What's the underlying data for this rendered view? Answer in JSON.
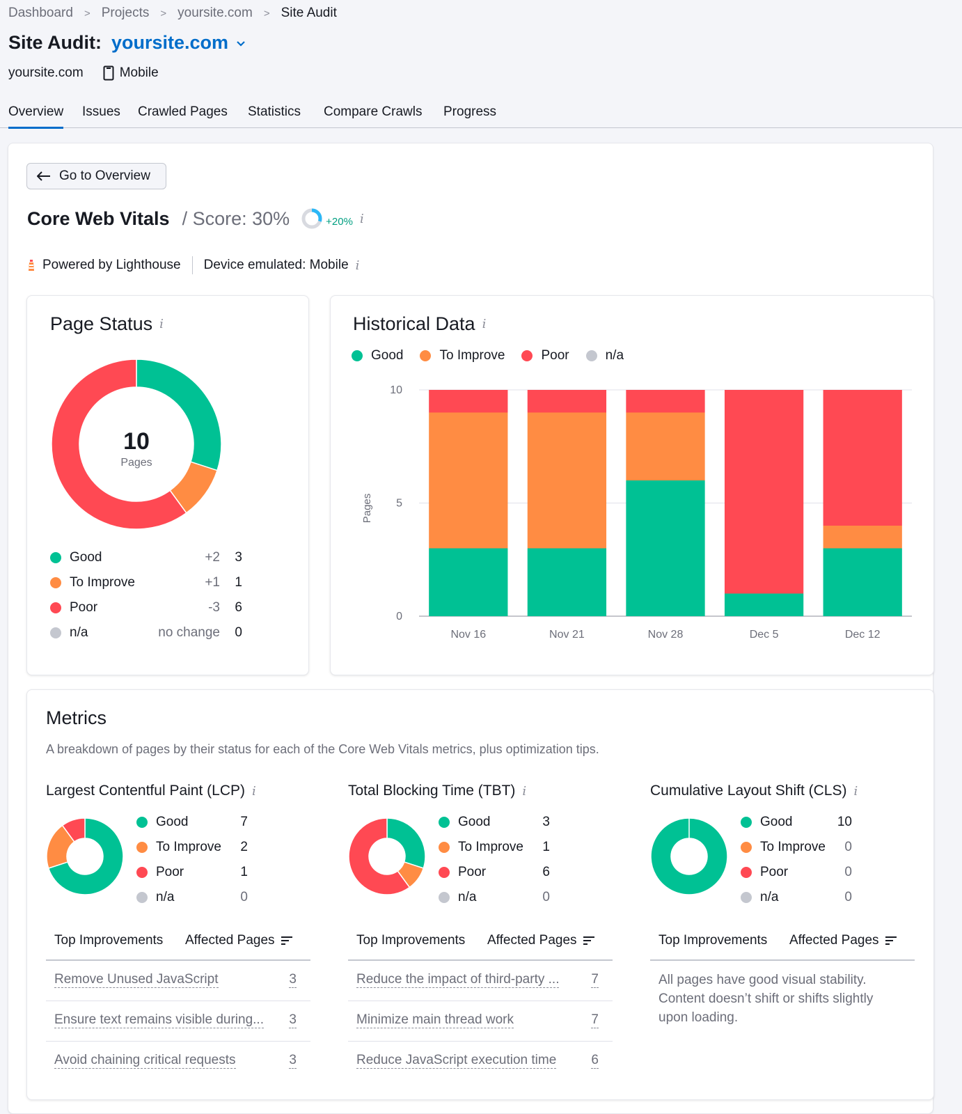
{
  "breadcrumb": [
    "Dashboard",
    "Projects",
    "yoursite.com",
    "Site Audit"
  ],
  "header": {
    "title": "Site Audit:",
    "site": "yoursite.com",
    "domain": "yoursite.com",
    "device": "Mobile"
  },
  "tabs": [
    "Overview",
    "Issues",
    "Crawled Pages",
    "Statistics",
    "Compare Crawls",
    "Progress"
  ],
  "active_tab": "Overview",
  "back_button": "Go to Overview",
  "cwv": {
    "title": "Core Web Vitals",
    "score_label": "/ Score: 30%",
    "score_value": 30,
    "score_delta": "+20%",
    "powered_by": "Powered by Lighthouse",
    "device_emulated": "Device emulated: Mobile"
  },
  "colors": {
    "good": "#00c194",
    "to_improve": "#ff8c43",
    "poor": "#ff4953",
    "na": "#c4c7cf",
    "accent": "#006dca",
    "positive": "#009f81"
  },
  "page_status": {
    "title": "Page Status",
    "total": "10",
    "total_label": "Pages",
    "rows": [
      {
        "label": "Good",
        "delta": "+2",
        "count": "3"
      },
      {
        "label": "To Improve",
        "delta": "+1",
        "count": "1"
      },
      {
        "label": "Poor",
        "delta": "-3",
        "count": "6"
      },
      {
        "label": "n/a",
        "delta": "no change",
        "count": "0"
      }
    ]
  },
  "historical": {
    "title": "Historical Data",
    "legend": [
      "Good",
      "To Improve",
      "Poor",
      "n/a"
    ]
  },
  "chart_data": {
    "type": "bar",
    "stacked": true,
    "categories": [
      "Nov 16",
      "Nov 21",
      "Nov 28",
      "Dec 5",
      "Dec 12"
    ],
    "series": [
      {
        "name": "Good",
        "values": [
          3,
          3,
          6,
          1,
          3
        ]
      },
      {
        "name": "To Improve",
        "values": [
          6,
          6,
          3,
          0,
          1
        ]
      },
      {
        "name": "Poor",
        "values": [
          1,
          1,
          1,
          9,
          6
        ]
      },
      {
        "name": "n/a",
        "values": [
          0,
          0,
          0,
          0,
          0
        ]
      }
    ],
    "ylabel": "Pages",
    "ylim": [
      0,
      10
    ],
    "yticks": [
      0,
      5,
      10
    ],
    "grid": true,
    "legend_position": "top-left"
  },
  "metrics": {
    "title": "Metrics",
    "description": "A breakdown of pages by their status for each of the Core Web Vitals metrics, plus optimization tips.",
    "improvements_header": "Top Improvements",
    "affected_header": "Affected Pages",
    "items": [
      {
        "title": "Largest Contentful Paint (LCP)",
        "good": "7",
        "to_improve": "2",
        "poor": "1",
        "na": "0",
        "improvements": [
          {
            "label": "Remove Unused JavaScript",
            "count": "3"
          },
          {
            "label": "Ensure text remains visible during...",
            "count": "3"
          },
          {
            "label": "Avoid chaining critical requests",
            "count": "3"
          }
        ]
      },
      {
        "title": "Total Blocking Time (TBT)",
        "good": "3",
        "to_improve": "1",
        "poor": "6",
        "na": "0",
        "improvements": [
          {
            "label": "Reduce the impact of third-party ...",
            "count": "7"
          },
          {
            "label": "Minimize main thread work",
            "count": "7"
          },
          {
            "label": "Reduce JavaScript execution time",
            "count": "6"
          }
        ]
      },
      {
        "title": "Cumulative Layout Shift (CLS)",
        "good": "10",
        "to_improve": "0",
        "poor": "0",
        "na": "0",
        "message": "All pages have good visual stability. Content doesn’t shift or shifts slightly upon loading."
      }
    ],
    "legend_labels": [
      "Good",
      "To Improve",
      "Poor",
      "n/a"
    ]
  }
}
